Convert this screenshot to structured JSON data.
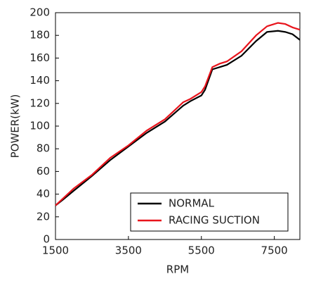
{
  "chart_data": {
    "type": "line",
    "x_label": "RPM",
    "y_label": "POWER(kW)",
    "x": [
      1500,
      1700,
      2000,
      2500,
      3000,
      3500,
      4000,
      4500,
      5000,
      5200,
      5500,
      5600,
      5800,
      6000,
      6200,
      6600,
      7000,
      7300,
      7600,
      7800,
      8000,
      8200
    ],
    "series": [
      {
        "name": "NORMAL",
        "color": "#000000",
        "values": [
          30,
          35,
          43,
          56,
          70,
          82,
          94,
          104,
          118,
          122,
          127,
          132,
          150,
          152,
          154,
          162,
          175,
          183,
          184,
          183,
          181,
          176
        ]
      },
      {
        "name": "RACING SUCTION",
        "color": "#e8141c",
        "values": [
          30,
          36,
          45,
          57,
          72,
          83,
          96,
          106,
          121,
          124,
          130,
          135,
          152,
          155,
          157,
          166,
          180,
          188,
          191,
          190,
          187,
          185
        ]
      }
    ],
    "xlim": [
      1500,
      8200
    ],
    "xticks": [
      1500,
      3500,
      5500,
      7500
    ],
    "ylim": [
      0,
      200
    ],
    "yticks": [
      0,
      20,
      40,
      60,
      80,
      100,
      120,
      140,
      160,
      180,
      200
    ],
    "legend": "lower right"
  }
}
